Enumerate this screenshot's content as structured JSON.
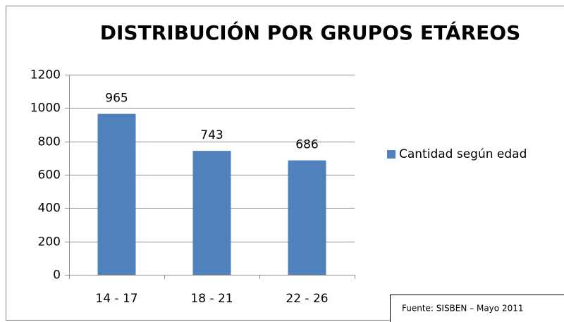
{
  "chart_data": {
    "type": "bar",
    "title": "DISTRIBUCIÓN POR GRUPOS ETÁREOS",
    "categories": [
      "14 - 17",
      "18 - 21",
      "22 - 26"
    ],
    "series": [
      {
        "name": "Cantidad según edad",
        "color": "#4f81bd",
        "values": [
          965,
          743,
          686
        ]
      }
    ],
    "ylim": [
      0,
      1200
    ],
    "yticks": [
      0,
      200,
      400,
      600,
      800,
      1000,
      1200
    ],
    "grid": true,
    "legend": "right",
    "source": "Fuente: SISBEN – Mayo 2011"
  }
}
